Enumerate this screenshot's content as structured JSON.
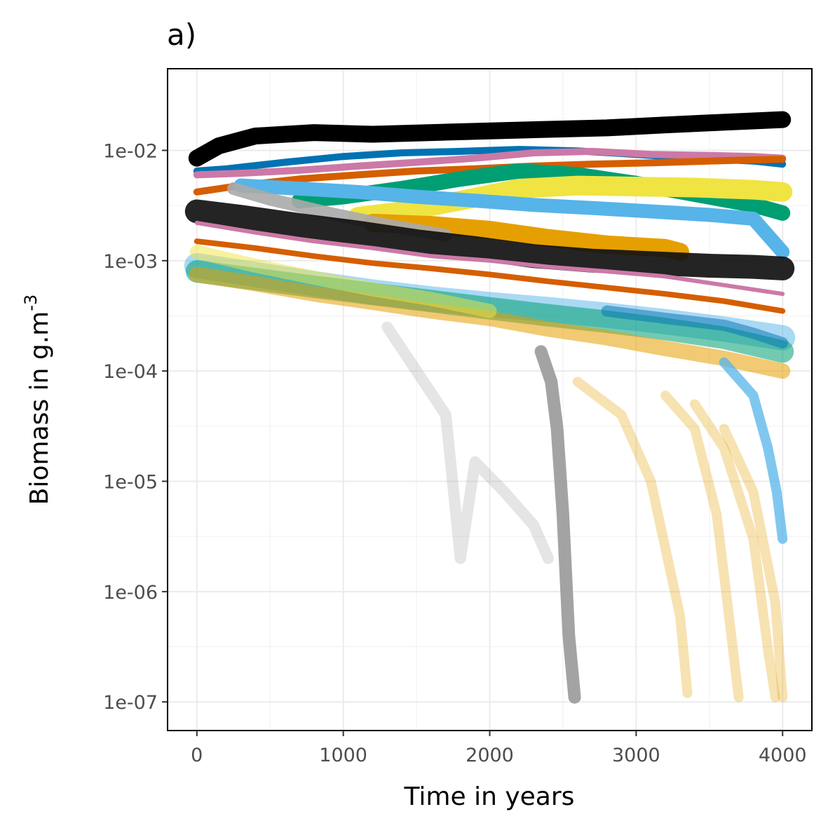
{
  "chart_data": {
    "type": "line",
    "title": "a)",
    "xlabel": "Time in years",
    "ylabel": "Biomass in g.m",
    "ylabel_superscript": "-3",
    "x_ticks": [
      0,
      1000,
      2000,
      3000,
      4000
    ],
    "x_tick_labels": [
      "0",
      "1000",
      "2000",
      "3000",
      "4000"
    ],
    "y_ticks": [
      1e-07,
      1e-06,
      1e-05,
      0.0001,
      0.001,
      0.01
    ],
    "y_tick_labels": [
      "1e-07",
      "1e-06",
      "1e-05",
      "1e-04",
      "1e-03",
      "1e-02"
    ],
    "xlim": [
      -200,
      4200
    ],
    "ylim": [
      5.5e-08,
      0.055
    ],
    "y_scale": "log",
    "grid": true,
    "legend": "none",
    "series": [
      {
        "color": "#000000",
        "width": 24,
        "opacity": 1,
        "x": [
          0,
          150,
          400,
          800,
          1200,
          1600,
          2000,
          2400,
          2800,
          3200,
          3600,
          4000
        ],
        "values": [
          0.0085,
          0.011,
          0.0135,
          0.0145,
          0.014,
          0.0145,
          0.015,
          0.0155,
          0.016,
          0.017,
          0.018,
          0.019
        ]
      },
      {
        "color": "#0072B2",
        "width": 10,
        "opacity": 1,
        "x": [
          0,
          200,
          600,
          1000,
          1400,
          1800,
          2200,
          2600,
          3000,
          3400,
          3800,
          4000
        ],
        "values": [
          0.0065,
          0.0068,
          0.0078,
          0.0088,
          0.0095,
          0.0098,
          0.0102,
          0.0099,
          0.0092,
          0.0085,
          0.008,
          0.0075
        ]
      },
      {
        "color": "#CC79A7",
        "width": 10,
        "opacity": 1,
        "x": [
          0,
          300,
          700,
          1100,
          1500,
          1900,
          2300,
          2700,
          3100,
          3500,
          3800,
          4000
        ],
        "values": [
          0.006,
          0.0062,
          0.0066,
          0.0072,
          0.0078,
          0.0085,
          0.0095,
          0.0098,
          0.0092,
          0.009,
          0.0088,
          0.0085
        ]
      },
      {
        "color": "#D55E00",
        "width": 10,
        "opacity": 1,
        "x": [
          0,
          300,
          700,
          1100,
          1500,
          1900,
          2300,
          2700,
          3100,
          3500,
          3800,
          4000
        ],
        "values": [
          0.0042,
          0.0048,
          0.0055,
          0.006,
          0.0065,
          0.0068,
          0.0072,
          0.0075,
          0.0077,
          0.008,
          0.0082,
          0.0083
        ]
      },
      {
        "color": "#009E73",
        "width": 22,
        "opacity": 1,
        "x": [
          700,
          1000,
          1400,
          1800,
          2200,
          2600,
          3000,
          3400,
          3800,
          4000
        ],
        "values": [
          0.0035,
          0.0038,
          0.0045,
          0.0055,
          0.0065,
          0.006,
          0.005,
          0.004,
          0.0032,
          0.0027
        ]
      },
      {
        "color": "#F0E442",
        "width": 28,
        "opacity": 1,
        "x": [
          1100,
          1400,
          1800,
          2200,
          2600,
          3000,
          3400,
          3800,
          4000
        ],
        "values": [
          0.0025,
          0.0028,
          0.0035,
          0.0045,
          0.0048,
          0.0047,
          0.0046,
          0.0044,
          0.0042
        ]
      },
      {
        "color": "#56B4E9",
        "width": 20,
        "opacity": 1,
        "x": [
          300,
          700,
          1100,
          1500,
          1900,
          2300,
          2700,
          3100,
          3500,
          3800,
          4000
        ],
        "values": [
          0.0048,
          0.0045,
          0.0042,
          0.0038,
          0.0035,
          0.0032,
          0.003,
          0.0028,
          0.0026,
          0.0024,
          0.0012
        ]
      },
      {
        "color": "#E69F00",
        "width": 26,
        "opacity": 1,
        "x": [
          1200,
          1600,
          2000,
          2400,
          2800,
          3200,
          3300
        ],
        "values": [
          0.0022,
          0.0021,
          0.0019,
          0.0016,
          0.0014,
          0.0013,
          0.0012
        ]
      },
      {
        "color": "#aaaaaa",
        "width": 18,
        "opacity": 0.9,
        "x": [
          250,
          500,
          900,
          1300,
          1700
        ],
        "values": [
          0.0045,
          0.0036,
          0.0027,
          0.0021,
          0.0017
        ]
      },
      {
        "color": "#111111",
        "width": 34,
        "opacity": 0.92,
        "x": [
          0,
          300,
          700,
          1100,
          1500,
          1900,
          2300,
          2700,
          3100,
          3500,
          3800,
          4000
        ],
        "values": [
          0.0028,
          0.0025,
          0.0021,
          0.0018,
          0.0015,
          0.0013,
          0.0011,
          0.001,
          0.00095,
          0.0009,
          0.00088,
          0.00085
        ]
      },
      {
        "color": "#D55E00",
        "width": 8,
        "opacity": 1,
        "x": [
          0,
          400,
          800,
          1200,
          1600,
          2000,
          2400,
          2800,
          3200,
          3600,
          4000
        ],
        "values": [
          0.0015,
          0.0013,
          0.0011,
          0.00095,
          0.00085,
          0.00075,
          0.00065,
          0.00057,
          0.0005,
          0.00043,
          0.00035
        ]
      },
      {
        "color": "#CC79A7",
        "width": 6,
        "opacity": 1,
        "x": [
          0,
          400,
          800,
          1200,
          1600,
          2000,
          2400,
          2800,
          3200,
          3600,
          4000
        ],
        "values": [
          0.0022,
          0.0018,
          0.0015,
          0.0013,
          0.0011,
          0.001,
          0.00088,
          0.0008,
          0.00072,
          0.0006,
          0.0005
        ]
      },
      {
        "color": "#56B4E9",
        "width": 36,
        "opacity": 0.5,
        "x": [
          0,
          400,
          800,
          1200,
          1600,
          2000,
          2400,
          2800,
          3200,
          3600,
          4000
        ],
        "values": [
          0.0009,
          0.00075,
          0.00062,
          0.00052,
          0.00045,
          0.0004,
          0.00036,
          0.00032,
          0.00028,
          0.00024,
          0.0002
        ]
      },
      {
        "color": "#009E73",
        "width": 32,
        "opacity": 0.55,
        "x": [
          0,
          400,
          800,
          1200,
          1600,
          2000,
          2400,
          2800,
          3200,
          3600,
          4000
        ],
        "values": [
          0.0008,
          0.00068,
          0.00058,
          0.0005,
          0.00043,
          0.00037,
          0.00032,
          0.00028,
          0.00024,
          0.0002,
          0.00015
        ]
      },
      {
        "color": "#E69F00",
        "width": 22,
        "opacity": 0.55,
        "x": [
          0,
          400,
          800,
          1200,
          1600,
          2000,
          2400,
          2800,
          3200,
          3600,
          4000
        ],
        "values": [
          0.00075,
          0.00062,
          0.0005,
          0.00042,
          0.00035,
          0.0003,
          0.00024,
          0.0002,
          0.00016,
          0.00013,
          0.0001
        ]
      },
      {
        "color": "#F0E442",
        "width": 20,
        "opacity": 0.5,
        "x": [
          0,
          400,
          800,
          1200,
          1600,
          2000
        ],
        "values": [
          0.0012,
          0.0009,
          0.0007,
          0.00055,
          0.00045,
          0.00035
        ]
      },
      {
        "color": "#0072B2",
        "width": 16,
        "opacity": 0.5,
        "x": [
          2800,
          3200,
          3600,
          3800,
          4000
        ],
        "values": [
          0.00035,
          0.0003,
          0.00026,
          0.00022,
          0.00018
        ]
      },
      {
        "color": "#999999",
        "width": 16,
        "opacity": 0.25,
        "x": [
          1300,
          1500,
          1700,
          1800,
          1900,
          2100,
          2300,
          2400
        ],
        "values": [
          0.00025,
          0.0001,
          4e-05,
          2e-06,
          1.5e-05,
          8e-06,
          4e-06,
          2e-06
        ]
      },
      {
        "color": "#999999",
        "width": 18,
        "opacity": 0.9,
        "x": [
          2350,
          2420,
          2460,
          2500,
          2540,
          2580
        ],
        "values": [
          0.00015,
          8e-05,
          3e-05,
          5e-06,
          4e-07,
          1.1e-07
        ]
      },
      {
        "color": "#E69F00",
        "width": 14,
        "opacity": 0.3,
        "x": [
          2600,
          2900,
          3100,
          3300,
          3350
        ],
        "values": [
          8e-05,
          4e-05,
          1e-05,
          6e-07,
          1.2e-07
        ]
      },
      {
        "color": "#E69F00",
        "width": 14,
        "opacity": 0.3,
        "x": [
          3200,
          3400,
          3550,
          3650,
          3700
        ],
        "values": [
          6e-05,
          3e-05,
          5e-06,
          4e-07,
          1.1e-07
        ]
      },
      {
        "color": "#E69F00",
        "width": 14,
        "opacity": 0.3,
        "x": [
          3400,
          3600,
          3800,
          3900,
          3950
        ],
        "values": [
          5e-05,
          2e-05,
          3e-06,
          3e-07,
          1.1e-07
        ]
      },
      {
        "color": "#E69F00",
        "width": 14,
        "opacity": 0.3,
        "x": [
          3600,
          3800,
          3950,
          4000
        ],
        "values": [
          3e-05,
          8e-06,
          8e-07,
          1.1e-07
        ]
      },
      {
        "color": "#56B4E9",
        "width": 14,
        "opacity": 0.75,
        "x": [
          3600,
          3800,
          3900,
          3960,
          4000
        ],
        "values": [
          0.00012,
          6e-05,
          2e-05,
          8e-06,
          3e-06
        ]
      }
    ]
  }
}
